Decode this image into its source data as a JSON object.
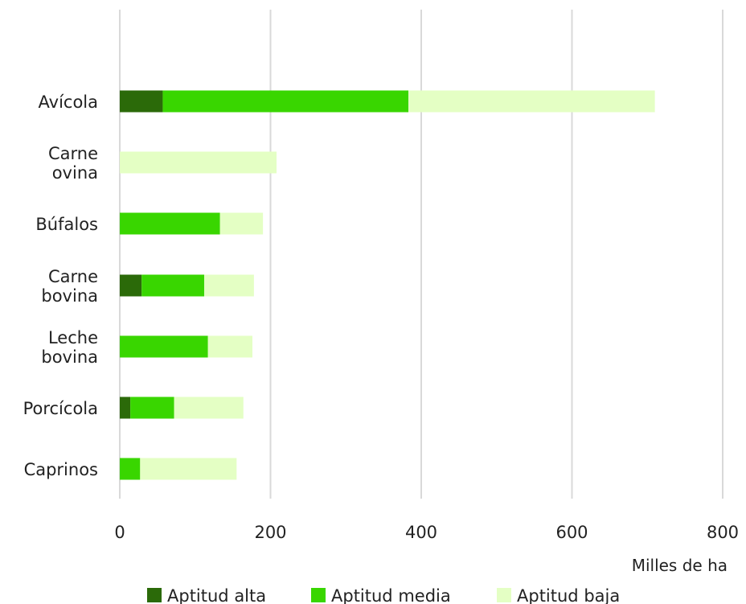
{
  "chart_data": {
    "type": "bar",
    "orientation": "horizontal",
    "stacked": true,
    "categories": [
      "Avícola",
      "Carne ovina",
      "Búfalos",
      "Carne bovina",
      "Leche bovina",
      "Porcícola",
      "Caprinos"
    ],
    "category_lines": [
      [
        "Avícola"
      ],
      [
        "Carne",
        "ovina"
      ],
      [
        "Búfalos"
      ],
      [
        "Carne",
        "bovina"
      ],
      [
        "Leche",
        "bovina"
      ],
      [
        "Porcícola"
      ],
      [
        "Caprinos"
      ]
    ],
    "series": [
      {
        "name": "Aptitud alta",
        "color": "#2b6a09",
        "values": [
          57,
          0,
          0,
          29,
          0,
          14,
          0
        ]
      },
      {
        "name": "Aptitud media",
        "color": "#39d600",
        "values": [
          326,
          0,
          133,
          83,
          117,
          58,
          27
        ]
      },
      {
        "name": "Aptitud baja",
        "color": "#e4ffc4",
        "values": [
          327,
          208,
          57,
          66,
          59,
          92,
          128
        ]
      }
    ],
    "xlim": [
      0,
      800
    ],
    "xticks": [
      0,
      200,
      400,
      600,
      800
    ],
    "xlabel": "Milles de ha",
    "grid": true,
    "legend": "bottom"
  }
}
